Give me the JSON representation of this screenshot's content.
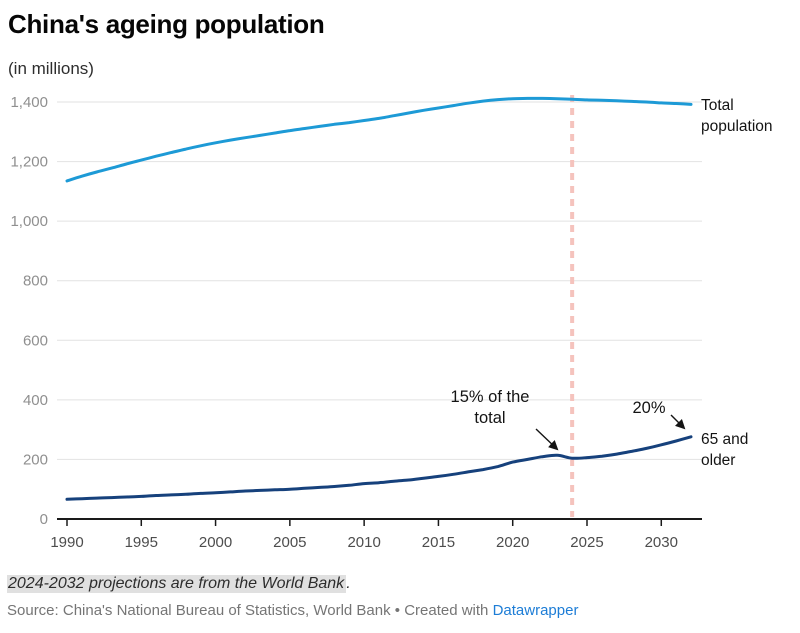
{
  "header": {
    "title": "China's ageing population",
    "subtitle": "(in millions)"
  },
  "chart_data": {
    "type": "line",
    "x": [
      1990,
      1991,
      1992,
      1993,
      1994,
      1995,
      1996,
      1997,
      1998,
      1999,
      2000,
      2001,
      2002,
      2003,
      2004,
      2005,
      2006,
      2007,
      2008,
      2009,
      2010,
      2011,
      2012,
      2013,
      2014,
      2015,
      2016,
      2017,
      2018,
      2019,
      2020,
      2021,
      2022,
      2023,
      2024,
      2025,
      2026,
      2027,
      2028,
      2029,
      2030,
      2031,
      2032
    ],
    "series": [
      {
        "name": "Total population",
        "color": "#1d9ad6",
        "values": [
          1135,
          1151,
          1165,
          1178,
          1192,
          1205,
          1218,
          1230,
          1242,
          1253,
          1263,
          1272,
          1280,
          1288,
          1296,
          1304,
          1311,
          1318,
          1325,
          1331,
          1338,
          1345,
          1354,
          1363,
          1372,
          1380,
          1388,
          1396,
          1403,
          1408,
          1411,
          1412,
          1412,
          1411,
          1409,
          1407,
          1406,
          1404,
          1402,
          1400,
          1397,
          1395,
          1392
        ]
      },
      {
        "name": "65 and older",
        "color": "#16417c",
        "values": [
          66,
          68,
          70,
          72,
          74,
          76,
          79,
          81,
          83,
          86,
          88,
          91,
          94,
          96,
          98,
          100,
          103,
          106,
          109,
          113,
          119,
          122,
          127,
          131,
          137,
          143,
          150,
          158,
          166,
          176,
          191,
          200,
          209,
          214,
          204,
          206,
          211,
          218,
          227,
          237,
          249,
          262,
          276
        ]
      }
    ],
    "title": "China's ageing population",
    "subtitle": "(in millions)",
    "xlabel": "",
    "ylabel": "(in millions)",
    "xlim": [
      1990,
      2032
    ],
    "ylim": [
      0,
      1400
    ],
    "grid": "horizontal",
    "legend_position": "right-of-line-ends",
    "xticks": {
      "values": [
        1990,
        1995,
        2000,
        2005,
        2010,
        2015,
        2020,
        2025,
        2030
      ],
      "labels": [
        "1990",
        "1995",
        "2000",
        "2005",
        "2010",
        "2015",
        "2020",
        "2025",
        "2030"
      ]
    },
    "yticks": {
      "values": [
        0,
        200,
        400,
        600,
        800,
        1000,
        1200,
        1400
      ],
      "labels": [
        "0",
        "200",
        "400",
        "600",
        "800",
        "1,000",
        "1,200",
        "1,400"
      ]
    },
    "projection_divider": {
      "x": 2024,
      "style": "dashed",
      "color": "#f5c3bd"
    },
    "annotations": [
      {
        "text": "15% of the total",
        "target_year": 2024,
        "target_value": 205
      },
      {
        "text": "20%",
        "target_year": 2032,
        "target_value": 276
      }
    ]
  },
  "footer": {
    "note_highlighted": "2024-2032 projections are from the World Bank",
    "note_suffix": ".",
    "source_prefix": "Source: China's National Bureau of Statistics, World Bank • Created with ",
    "link_label": "Datawrapper"
  }
}
